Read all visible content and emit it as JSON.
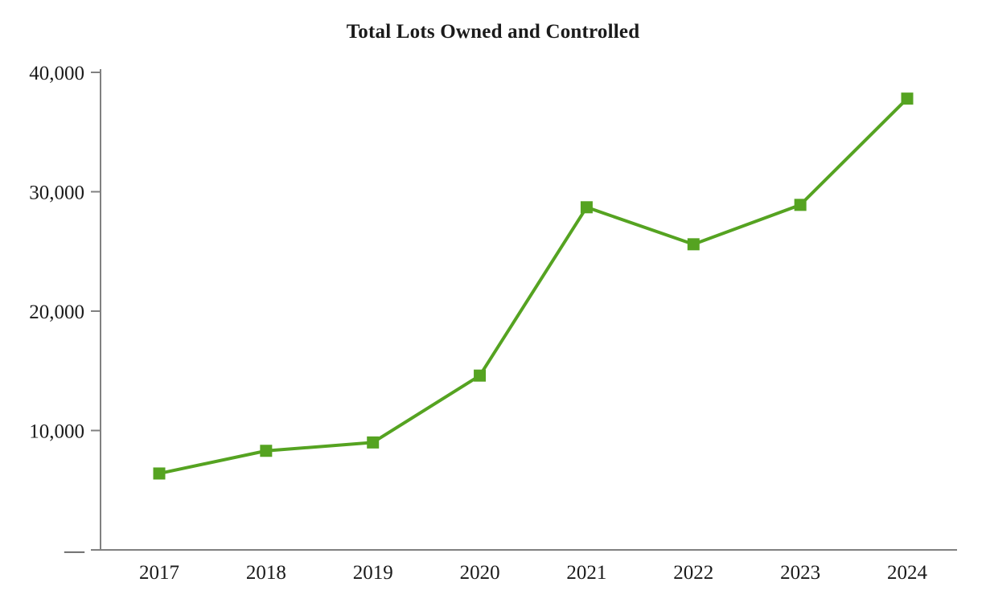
{
  "chart_data": {
    "type": "line",
    "title": "Total Lots Owned and Controlled",
    "categories": [
      "2017",
      "2018",
      "2019",
      "2020",
      "2021",
      "2022",
      "2023",
      "2024"
    ],
    "series": [
      {
        "name": "Total Lots Owned and Controlled",
        "values": [
          6400,
          8300,
          9000,
          14600,
          28700,
          25600,
          28900,
          37800
        ]
      }
    ],
    "ylim": [
      0,
      40000
    ],
    "yticks": [
      0,
      10000,
      20000,
      30000,
      40000
    ],
    "ytick_labels": [
      "—",
      "10,000",
      "20,000",
      "30,000",
      "40,000"
    ],
    "xlabel": "",
    "ylabel": "",
    "grid": false,
    "legend_position": "none",
    "line_color": "#55a321",
    "marker": "square",
    "marker_size": 15,
    "axis_color": "#808080",
    "text_color": "#1a1a1a"
  }
}
